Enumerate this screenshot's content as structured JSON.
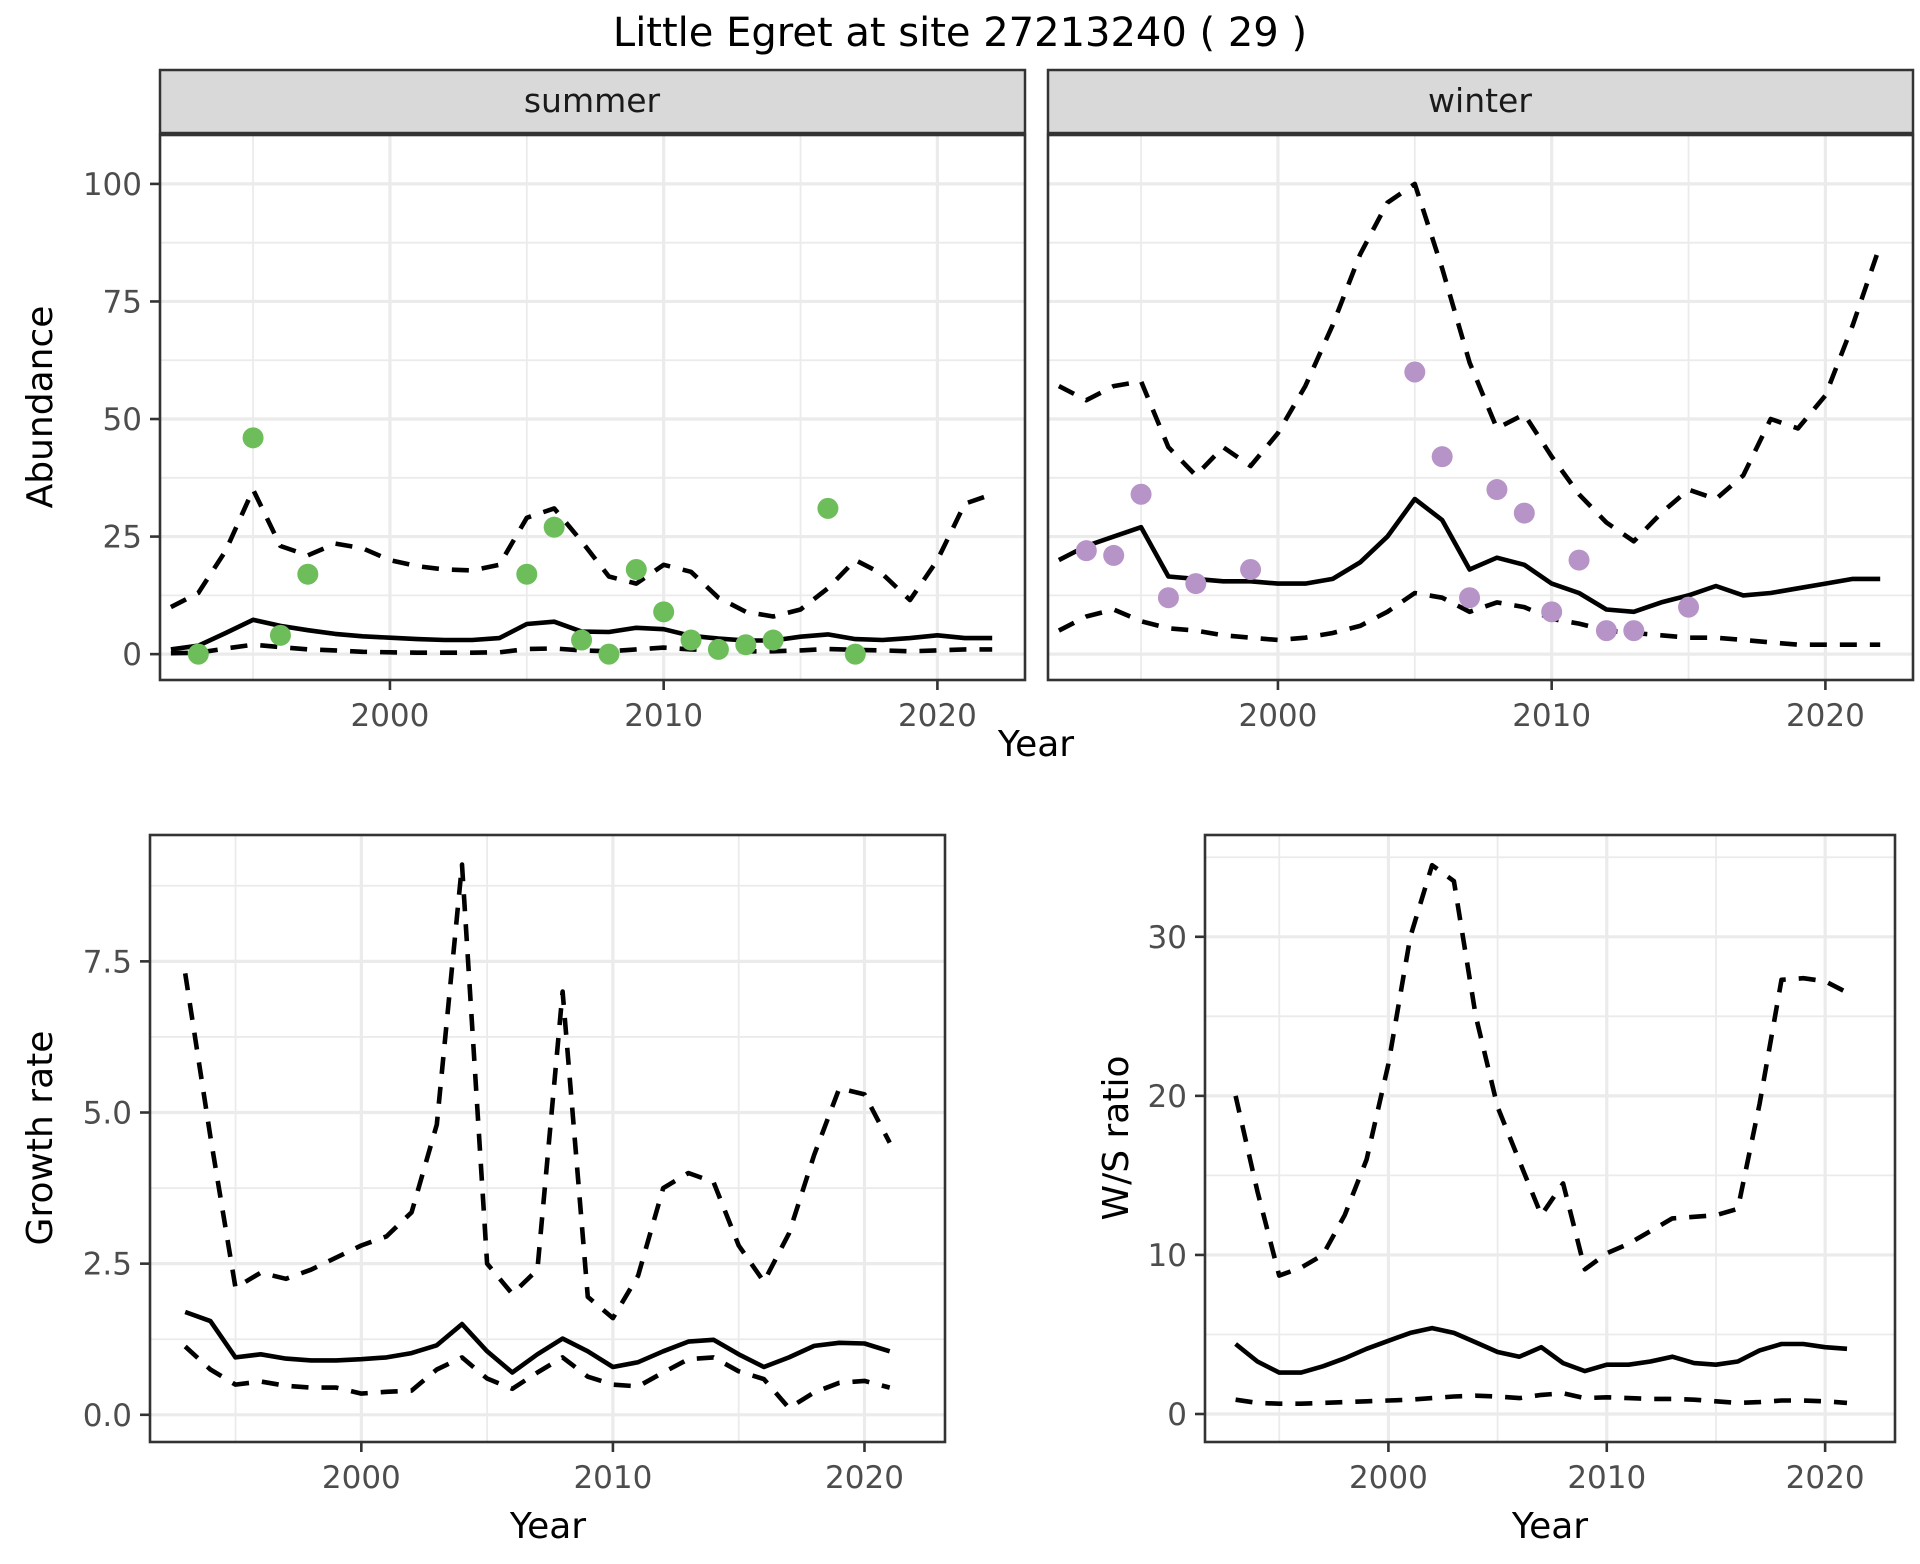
{
  "title": "Little Egret at site 27213240 ( 29 )",
  "colors": {
    "summer_points": "#6dbe5b",
    "winter_points": "#b794c7",
    "line": "#000000",
    "grid": "#ebebeb",
    "strip_bg": "#d9d9d9",
    "strip_border": "#333333",
    "panel_border": "#333333",
    "axis_text": "#4d4d4d",
    "tick": "#333333"
  },
  "chart_data": [
    {
      "id": "summer",
      "type": "line",
      "title": "summer",
      "xlabel": "Year",
      "ylabel": "Abundance",
      "xlim": [
        1991.6,
        2023.2
      ],
      "ylim": [
        -5.5,
        110.4
      ],
      "grid": true,
      "legend": "none",
      "show_y_tick_labels": true,
      "x_ticks": [
        2000,
        2010,
        2020
      ],
      "x_tick_labels": [
        "2000",
        "2010",
        "2020"
      ],
      "x_minor": [
        1995,
        2005,
        2015
      ],
      "y_ticks": [
        0,
        25,
        50,
        75,
        100
      ],
      "y_tick_labels": [
        "0",
        "25",
        "50",
        "75",
        "100"
      ],
      "y_minor": [
        12.5,
        37.5,
        62.5,
        87.5
      ],
      "series": [
        {
          "name": "upper_ci",
          "style": "dashed",
          "x": [
            1992,
            1993,
            1994,
            1995,
            1996,
            1997,
            1998,
            1999,
            2000,
            2001,
            2002,
            2003,
            2004,
            2005,
            2006,
            2007,
            2008,
            2009,
            2010,
            2011,
            2012,
            2013,
            2014,
            2015,
            2016,
            2017,
            2018,
            2019,
            2020,
            2021,
            2022
          ],
          "y": [
            10,
            13,
            22,
            35,
            23,
            21,
            23.5,
            22.5,
            20,
            18.7,
            18,
            17.8,
            19,
            29,
            31,
            24,
            16.5,
            15,
            19,
            17.5,
            12,
            9,
            8,
            9.5,
            14,
            20,
            17,
            11.5,
            20,
            32,
            34
          ]
        },
        {
          "name": "lower_ci",
          "style": "dashed",
          "x": [
            1992,
            1993,
            1994,
            1995,
            1996,
            1997,
            1998,
            1999,
            2000,
            2001,
            2002,
            2003,
            2004,
            2005,
            2006,
            2007,
            2008,
            2009,
            2010,
            2011,
            2012,
            2013,
            2014,
            2015,
            2016,
            2017,
            2018,
            2019,
            2020,
            2021,
            2022
          ],
          "y": [
            0.2,
            0.3,
            1.2,
            2.0,
            1.5,
            1.0,
            0.8,
            0.5,
            0.4,
            0.3,
            0.3,
            0.3,
            0.4,
            1.1,
            1.2,
            0.8,
            0.6,
            1.0,
            1.4,
            1.0,
            0.8,
            0.6,
            0.6,
            0.8,
            1.1,
            0.9,
            0.8,
            0.6,
            0.8,
            1.0,
            1.0
          ]
        },
        {
          "name": "fit",
          "style": "solid",
          "x": [
            1992,
            1993,
            1994,
            1995,
            1996,
            1997,
            1998,
            1999,
            2000,
            2001,
            2002,
            2003,
            2004,
            2005,
            2006,
            2007,
            2008,
            2009,
            2010,
            2011,
            2012,
            2013,
            2014,
            2015,
            2016,
            2017,
            2018,
            2019,
            2020,
            2021,
            2022
          ],
          "y": [
            1.0,
            1.8,
            4.5,
            7.3,
            6.0,
            5.1,
            4.3,
            3.8,
            3.5,
            3.2,
            3.0,
            3.0,
            3.4,
            6.4,
            6.9,
            4.8,
            4.7,
            5.6,
            5.3,
            3.9,
            3.3,
            2.9,
            2.9,
            3.7,
            4.2,
            3.2,
            3.0,
            3.4,
            4.0,
            3.4,
            3.4
          ]
        },
        {
          "name": "observations",
          "style": "points",
          "color_key": "summer_points",
          "x": [
            1993,
            1995,
            1996,
            1997,
            2005,
            2006,
            2007,
            2008,
            2009,
            2010,
            2011,
            2012,
            2013,
            2014,
            2016,
            2017
          ],
          "y": [
            0,
            46,
            4,
            17,
            17,
            27,
            3,
            0,
            18,
            9,
            3,
            1,
            2,
            3,
            31,
            0
          ]
        }
      ]
    },
    {
      "id": "winter",
      "type": "line",
      "title": "winter",
      "xlabel": "Year",
      "ylabel": "Abundance",
      "xlim": [
        1991.6,
        2023.2
      ],
      "ylim": [
        -5.5,
        110.4
      ],
      "grid": true,
      "legend": "none",
      "show_y_tick_labels": false,
      "x_ticks": [
        2000,
        2010,
        2020
      ],
      "x_tick_labels": [
        "2000",
        "2010",
        "2020"
      ],
      "x_minor": [
        1995,
        2005,
        2015
      ],
      "y_ticks": [
        0,
        25,
        50,
        75,
        100
      ],
      "y_tick_labels": [
        "0",
        "25",
        "50",
        "75",
        "100"
      ],
      "y_minor": [
        12.5,
        37.5,
        62.5,
        87.5
      ],
      "series": [
        {
          "name": "upper_ci",
          "style": "dashed",
          "x": [
            1992,
            1993,
            1994,
            1995,
            1996,
            1997,
            1998,
            1999,
            2000,
            2001,
            2002,
            2003,
            2004,
            2005,
            2006,
            2007,
            2008,
            2009,
            2010,
            2011,
            2012,
            2013,
            2014,
            2015,
            2016,
            2017,
            2018,
            2019,
            2020,
            2021,
            2022
          ],
          "y": [
            57,
            54,
            57,
            58,
            44,
            38,
            44,
            40,
            47,
            57,
            70,
            85,
            96,
            100,
            82,
            62,
            48,
            51,
            42,
            34,
            28,
            24,
            30,
            35,
            33,
            38,
            50,
            48,
            55,
            70,
            87
          ]
        },
        {
          "name": "lower_ci",
          "style": "dashed",
          "x": [
            1992,
            1993,
            1994,
            1995,
            1996,
            1997,
            1998,
            1999,
            2000,
            2001,
            2002,
            2003,
            2004,
            2005,
            2006,
            2007,
            2008,
            2009,
            2010,
            2011,
            2012,
            2013,
            2014,
            2015,
            2016,
            2017,
            2018,
            2019,
            2020,
            2021,
            2022
          ],
          "y": [
            5,
            8,
            9.5,
            7,
            5.5,
            5,
            4,
            3.5,
            3,
            3.5,
            4.5,
            6,
            9,
            13,
            12,
            9,
            11,
            10,
            7.5,
            6.5,
            5,
            4.5,
            4,
            3.5,
            3.5,
            3,
            2.5,
            2,
            2,
            2,
            2
          ]
        },
        {
          "name": "fit",
          "style": "solid",
          "x": [
            1992,
            1993,
            1994,
            1995,
            1996,
            1997,
            1998,
            1999,
            2000,
            2001,
            2002,
            2003,
            2004,
            2005,
            2006,
            2007,
            2008,
            2009,
            2010,
            2011,
            2012,
            2013,
            2014,
            2015,
            2016,
            2017,
            2018,
            2019,
            2020,
            2021,
            2022
          ],
          "y": [
            20,
            23,
            25,
            27,
            16.5,
            16,
            15.5,
            15.5,
            15,
            15,
            16,
            19.5,
            25,
            33,
            28.5,
            18,
            20.5,
            19,
            15,
            13,
            9.5,
            9,
            11,
            12.5,
            14.5,
            12.5,
            13,
            14,
            15,
            16,
            16
          ]
        },
        {
          "name": "observations",
          "style": "points",
          "color_key": "winter_points",
          "x": [
            1993,
            1994,
            1995,
            1996,
            1997,
            1999,
            2005,
            2006,
            2007,
            2008,
            2009,
            2010,
            2011,
            2012,
            2013,
            2015
          ],
          "y": [
            22,
            21,
            34,
            12,
            15,
            18,
            60,
            42,
            12,
            35,
            30,
            9,
            20,
            5,
            5,
            10
          ]
        }
      ]
    },
    {
      "id": "growth",
      "type": "line",
      "title": "",
      "xlabel": "Year",
      "ylabel": "Growth rate",
      "xlim": [
        1991.6,
        2023.2
      ],
      "ylim": [
        -0.45,
        9.59
      ],
      "grid": true,
      "legend": "none",
      "show_y_tick_labels": true,
      "x_ticks": [
        2000,
        2010,
        2020
      ],
      "x_tick_labels": [
        "2000",
        "2010",
        "2020"
      ],
      "x_minor": [
        1995,
        2005,
        2015
      ],
      "y_ticks": [
        0,
        2.5,
        5,
        7.5
      ],
      "y_tick_labels": [
        "0.0",
        "2.5",
        "5.0",
        "7.5"
      ],
      "y_minor": [
        1.25,
        3.75,
        6.25,
        8.75
      ],
      "series": [
        {
          "name": "upper_ci",
          "style": "dashed",
          "x": [
            1993,
            1994,
            1995,
            1996,
            1997,
            1998,
            1999,
            2000,
            2001,
            2002,
            2003,
            2004,
            2005,
            2006,
            2007,
            2008,
            2009,
            2010,
            2011,
            2012,
            2013,
            2014,
            2015,
            2016,
            2017,
            2018,
            2019,
            2020,
            2021
          ],
          "y": [
            7.3,
            4.6,
            2.1,
            2.35,
            2.25,
            2.4,
            2.6,
            2.8,
            2.95,
            3.35,
            4.8,
            9.1,
            2.5,
            2.0,
            2.4,
            7.0,
            1.95,
            1.6,
            2.3,
            3.75,
            4.0,
            3.85,
            2.8,
            2.2,
            3.0,
            4.3,
            5.4,
            5.3,
            4.5
          ]
        },
        {
          "name": "lower_ci",
          "style": "dashed",
          "x": [
            1993,
            1994,
            1995,
            1996,
            1997,
            1998,
            1999,
            2000,
            2001,
            2002,
            2003,
            2004,
            2005,
            2006,
            2007,
            2008,
            2009,
            2010,
            2011,
            2012,
            2013,
            2014,
            2015,
            2016,
            2017,
            2018,
            2019,
            2020,
            2021
          ],
          "y": [
            1.13,
            0.75,
            0.5,
            0.55,
            0.48,
            0.45,
            0.45,
            0.35,
            0.38,
            0.4,
            0.75,
            0.95,
            0.6,
            0.43,
            0.7,
            0.95,
            0.63,
            0.5,
            0.47,
            0.7,
            0.92,
            0.95,
            0.72,
            0.59,
            0.11,
            0.37,
            0.53,
            0.56,
            0.45
          ]
        },
        {
          "name": "fit",
          "style": "solid",
          "x": [
            1993,
            1994,
            1995,
            1996,
            1997,
            1998,
            1999,
            2000,
            2001,
            2002,
            2003,
            2004,
            2005,
            2006,
            2007,
            2008,
            2009,
            2010,
            2011,
            2012,
            2013,
            2014,
            2015,
            2016,
            2017,
            2018,
            2019,
            2020,
            2021
          ],
          "y": [
            1.7,
            1.55,
            0.95,
            1.0,
            0.93,
            0.9,
            0.9,
            0.92,
            0.95,
            1.02,
            1.15,
            1.5,
            1.05,
            0.7,
            1.0,
            1.26,
            1.05,
            0.79,
            0.87,
            1.05,
            1.21,
            1.24,
            1.0,
            0.79,
            0.95,
            1.14,
            1.19,
            1.18,
            1.05
          ]
        }
      ]
    },
    {
      "id": "ws",
      "type": "line",
      "title": "",
      "xlabel": "Year",
      "ylabel": "W/S ratio",
      "xlim": [
        1991.6,
        2023.2
      ],
      "ylim": [
        -1.76,
        36.4
      ],
      "grid": true,
      "legend": "none",
      "show_y_tick_labels": true,
      "x_ticks": [
        2000,
        2010,
        2020
      ],
      "x_tick_labels": [
        "2000",
        "2010",
        "2020"
      ],
      "x_minor": [
        1995,
        2005,
        2015
      ],
      "y_ticks": [
        0,
        10,
        20,
        30
      ],
      "y_tick_labels": [
        "0",
        "10",
        "20",
        "30"
      ],
      "y_minor": [
        5,
        15,
        25,
        35
      ],
      "series": [
        {
          "name": "upper_ci",
          "style": "dashed",
          "x": [
            1993,
            1994,
            1995,
            1996,
            1997,
            1998,
            1999,
            2000,
            2001,
            2002,
            2003,
            2004,
            2005,
            2006,
            2007,
            2008,
            2009,
            2010,
            2011,
            2012,
            2013,
            2014,
            2015,
            2016,
            2017,
            2018,
            2019,
            2020,
            2021
          ],
          "y": [
            20,
            14,
            8.7,
            9.2,
            10,
            12.5,
            16,
            22,
            30,
            34.5,
            33.5,
            25,
            19.3,
            15.9,
            12.5,
            14.5,
            9.1,
            10.1,
            10.7,
            11.5,
            12.3,
            12.4,
            12.5,
            12.9,
            19.5,
            27.3,
            27.4,
            27.2,
            26.5
          ]
        },
        {
          "name": "lower_ci",
          "style": "dashed",
          "x": [
            1993,
            1994,
            1995,
            1996,
            1997,
            1998,
            1999,
            2000,
            2001,
            2002,
            2003,
            2004,
            2005,
            2006,
            2007,
            2008,
            2009,
            2010,
            2011,
            2012,
            2013,
            2014,
            2015,
            2016,
            2017,
            2018,
            2019,
            2020,
            2021
          ],
          "y": [
            0.9,
            0.7,
            0.65,
            0.65,
            0.7,
            0.75,
            0.8,
            0.85,
            0.9,
            1.0,
            1.1,
            1.15,
            1.1,
            1.0,
            1.2,
            1.3,
            1.0,
            1.05,
            1.0,
            0.95,
            0.95,
            0.9,
            0.8,
            0.7,
            0.75,
            0.85,
            0.85,
            0.8,
            0.7
          ]
        },
        {
          "name": "fit",
          "style": "solid",
          "x": [
            1993,
            1994,
            1995,
            1996,
            1997,
            1998,
            1999,
            2000,
            2001,
            2002,
            2003,
            2004,
            2005,
            2006,
            2007,
            2008,
            2009,
            2010,
            2011,
            2012,
            2013,
            2014,
            2015,
            2016,
            2017,
            2018,
            2019,
            2020,
            2021
          ],
          "y": [
            4.4,
            3.3,
            2.6,
            2.6,
            3.0,
            3.5,
            4.1,
            4.6,
            5.1,
            5.4,
            5.1,
            4.5,
            3.9,
            3.6,
            4.2,
            3.2,
            2.7,
            3.1,
            3.1,
            3.3,
            3.6,
            3.2,
            3.1,
            3.3,
            4.0,
            4.4,
            4.4,
            4.2,
            4.1
          ]
        }
      ]
    }
  ]
}
